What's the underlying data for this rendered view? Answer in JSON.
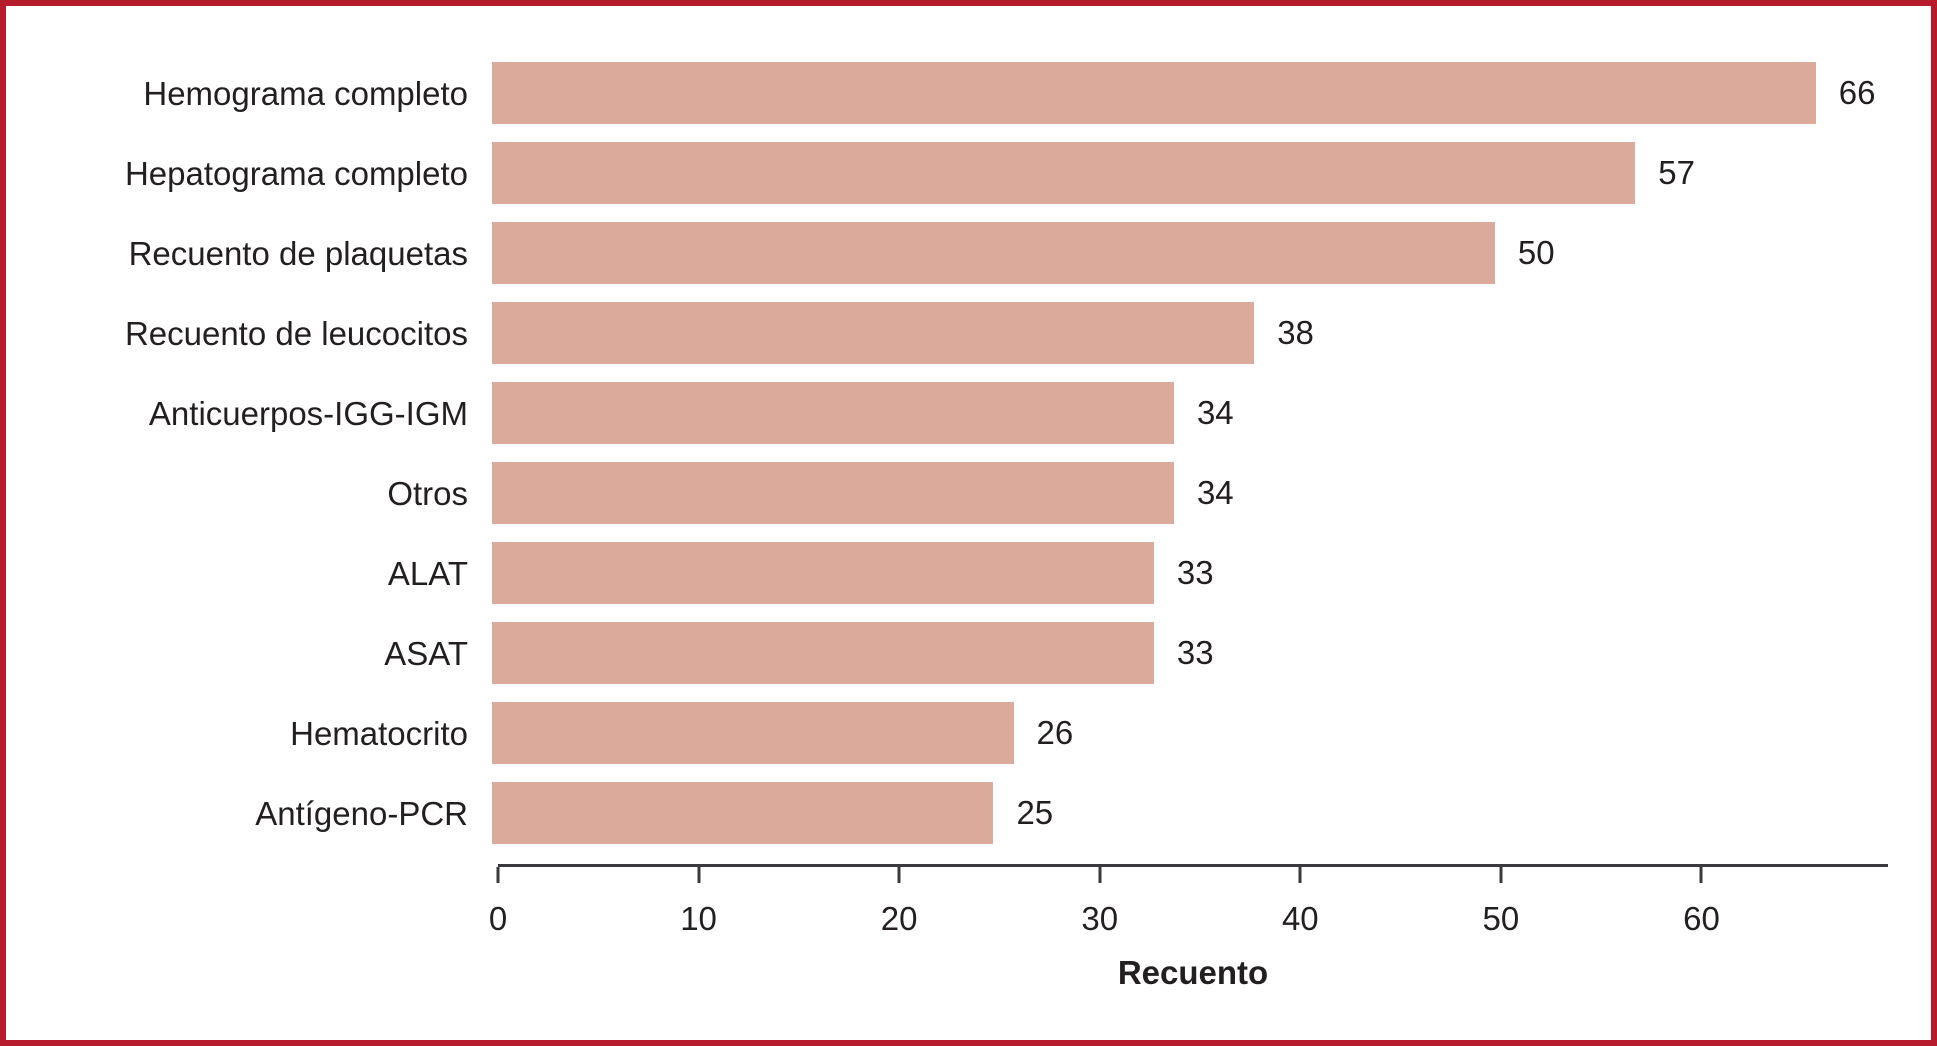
{
  "chart_data": {
    "type": "bar",
    "orientation": "horizontal",
    "categories": [
      "Hemograma completo",
      "Hepatograma completo",
      "Recuento de plaquetas",
      "Recuento de leucocitos",
      "Anticuerpos-IGG-IGM",
      "Otros",
      "ALAT",
      "ASAT",
      "Hematocrito",
      "Antígeno-PCR"
    ],
    "values": [
      66,
      57,
      50,
      38,
      34,
      34,
      33,
      33,
      26,
      25
    ],
    "title": "",
    "xlabel": "Recuento",
    "ylabel": "",
    "xticks": [
      0,
      10,
      20,
      30,
      40,
      50,
      60
    ],
    "xlim": [
      0,
      69.3
    ],
    "grid": false,
    "legend": "none",
    "value_labels": "end-of-bar",
    "bar_color": "#dbaa9b",
    "frame_border_color": "#b71c2c",
    "axis_color": "#3a393d",
    "text_color": "#231f20"
  }
}
